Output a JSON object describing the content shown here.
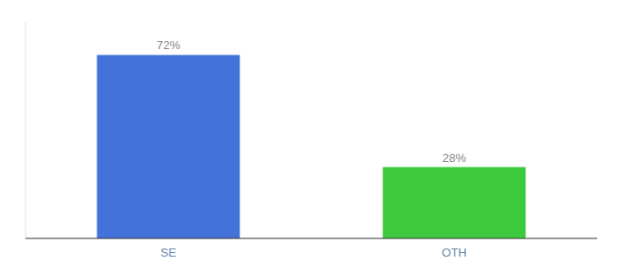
{
  "chart_data": {
    "type": "bar",
    "categories": [
      "SE",
      "OTH"
    ],
    "values": [
      72,
      28
    ],
    "value_labels": [
      "72%",
      "28%"
    ],
    "colors": [
      "#4472db",
      "#3dc93d"
    ],
    "ylim": [
      0,
      85
    ],
    "data_labels": true,
    "tick_labels": "x"
  }
}
